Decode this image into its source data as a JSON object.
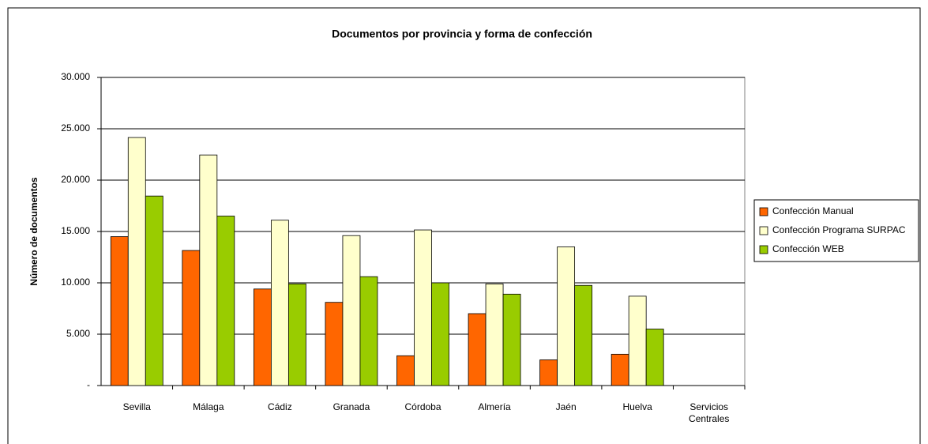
{
  "chart_data": {
    "type": "bar",
    "title": "Documentos por provincia y forma de confección",
    "y_label": "Número de documentos",
    "categories": [
      "Sevilla",
      "Málaga",
      "Cádiz",
      "Granada",
      "Córdoba",
      "Almería",
      "Jaén",
      "Huelva",
      "Servicios Centrales"
    ],
    "series": [
      {
        "name": "Confección Manual",
        "color": "#ff6600",
        "values": [
          14500,
          13150,
          9400,
          8100,
          2900,
          7000,
          2500,
          3050,
          0
        ]
      },
      {
        "name": "Confección Programa SURPAC",
        "color": "#ffffcc",
        "values": [
          24150,
          22450,
          16100,
          14600,
          15150,
          9900,
          13500,
          8700,
          0
        ]
      },
      {
        "name": "Confección WEB",
        "color": "#99cc00",
        "values": [
          18450,
          16500,
          9900,
          10600,
          10000,
          8900,
          9750,
          5500,
          0
        ]
      }
    ],
    "ylim": [
      0,
      30000
    ],
    "yticks": [
      {
        "value": 0,
        "label": "-"
      },
      {
        "value": 5000,
        "label": "5.000"
      },
      {
        "value": 10000,
        "label": "10.000"
      },
      {
        "value": 15000,
        "label": "15.000"
      },
      {
        "value": 20000,
        "label": "20.000"
      },
      {
        "value": 25000,
        "label": "25.000"
      },
      {
        "value": 30000,
        "label": "30.000"
      }
    ],
    "grid": true,
    "legend": "right"
  }
}
